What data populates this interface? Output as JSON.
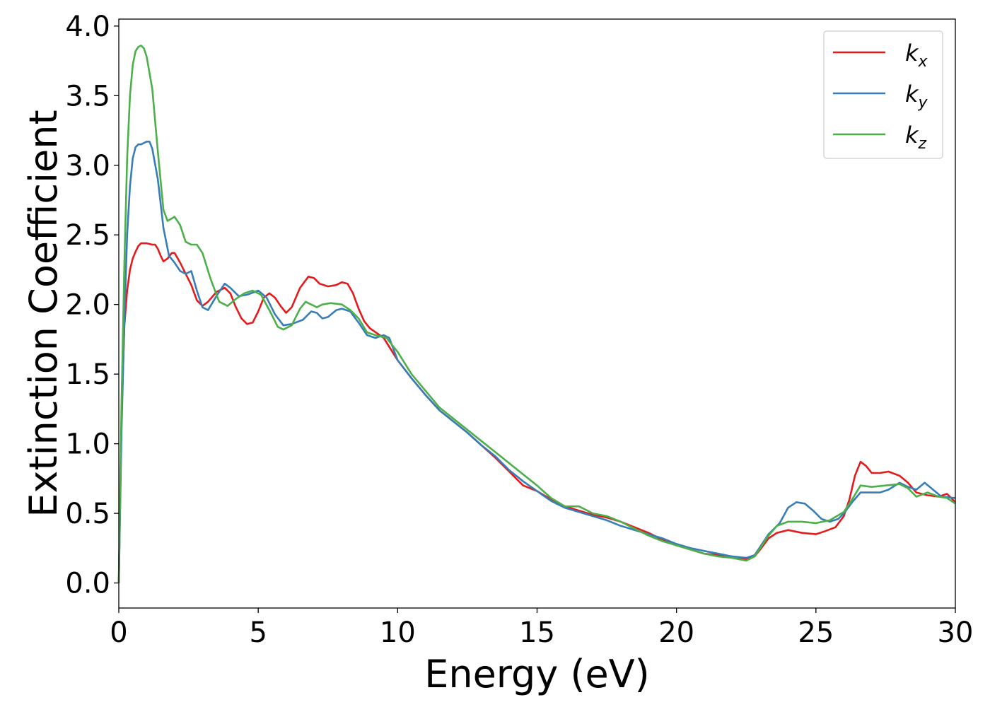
{
  "chart_data": {
    "type": "line",
    "title": "",
    "xlabel": "Energy (eV)",
    "ylabel": "Extinction Coefficient",
    "xlim": [
      0,
      30
    ],
    "ylim": [
      -0.18,
      4.05
    ],
    "xticks": [
      0,
      5,
      10,
      15,
      20,
      25,
      30
    ],
    "xtick_labels": [
      "0",
      "5",
      "10",
      "15",
      "20",
      "25",
      "30"
    ],
    "yticks": [
      0.0,
      0.5,
      1.0,
      1.5,
      2.0,
      2.5,
      3.0,
      3.5,
      4.0
    ],
    "ytick_labels": [
      "0.0",
      "0.5",
      "1.0",
      "1.5",
      "2.0",
      "2.5",
      "3.0",
      "3.5",
      "4.0"
    ],
    "grid": false,
    "legend_position": "top-right",
    "series": [
      {
        "name": "k_x",
        "label_main": "k",
        "label_sub": "x",
        "color": "#e41a1c",
        "points": [
          [
            0,
            0.0
          ],
          [
            0.1,
            1.2
          ],
          [
            0.2,
            1.85
          ],
          [
            0.3,
            2.1
          ],
          [
            0.4,
            2.25
          ],
          [
            0.5,
            2.33
          ],
          [
            0.6,
            2.38
          ],
          [
            0.7,
            2.42
          ],
          [
            0.8,
            2.44
          ],
          [
            1.0,
            2.44
          ],
          [
            1.2,
            2.43
          ],
          [
            1.3,
            2.43
          ],
          [
            1.4,
            2.4
          ],
          [
            1.5,
            2.35
          ],
          [
            1.6,
            2.31
          ],
          [
            1.75,
            2.33
          ],
          [
            1.9,
            2.37
          ],
          [
            2.0,
            2.37
          ],
          [
            2.2,
            2.3
          ],
          [
            2.4,
            2.22
          ],
          [
            2.6,
            2.14
          ],
          [
            2.8,
            2.03
          ],
          [
            3.0,
            1.99
          ],
          [
            3.2,
            2.02
          ],
          [
            3.5,
            2.09
          ],
          [
            3.8,
            2.12
          ],
          [
            4.0,
            2.08
          ],
          [
            4.2,
            1.98
          ],
          [
            4.4,
            1.9
          ],
          [
            4.6,
            1.86
          ],
          [
            4.8,
            1.87
          ],
          [
            5.0,
            1.95
          ],
          [
            5.2,
            2.05
          ],
          [
            5.4,
            2.08
          ],
          [
            5.6,
            2.05
          ],
          [
            5.8,
            1.99
          ],
          [
            6.0,
            1.94
          ],
          [
            6.2,
            1.98
          ],
          [
            6.5,
            2.12
          ],
          [
            6.8,
            2.2
          ],
          [
            7.0,
            2.19
          ],
          [
            7.2,
            2.15
          ],
          [
            7.5,
            2.13
          ],
          [
            7.8,
            2.14
          ],
          [
            8.0,
            2.16
          ],
          [
            8.2,
            2.15
          ],
          [
            8.4,
            2.08
          ],
          [
            8.6,
            1.97
          ],
          [
            8.8,
            1.88
          ],
          [
            9.0,
            1.83
          ],
          [
            9.5,
            1.76
          ],
          [
            10.0,
            1.6
          ],
          [
            10.5,
            1.47
          ],
          [
            11.0,
            1.35
          ],
          [
            11.5,
            1.24
          ],
          [
            12.0,
            1.16
          ],
          [
            12.5,
            1.08
          ],
          [
            13.0,
            0.99
          ],
          [
            13.5,
            0.9
          ],
          [
            14.0,
            0.8
          ],
          [
            14.5,
            0.7
          ],
          [
            15.0,
            0.66
          ],
          [
            15.5,
            0.6
          ],
          [
            16.0,
            0.55
          ],
          [
            16.5,
            0.52
          ],
          [
            17.0,
            0.49
          ],
          [
            17.5,
            0.47
          ],
          [
            18.0,
            0.44
          ],
          [
            18.5,
            0.4
          ],
          [
            19.0,
            0.36
          ],
          [
            19.5,
            0.31
          ],
          [
            20.0,
            0.27
          ],
          [
            20.5,
            0.24
          ],
          [
            21.0,
            0.21
          ],
          [
            21.5,
            0.2
          ],
          [
            22.0,
            0.19
          ],
          [
            22.5,
            0.17
          ],
          [
            22.8,
            0.19
          ],
          [
            23.0,
            0.24
          ],
          [
            23.3,
            0.32
          ],
          [
            23.6,
            0.36
          ],
          [
            24.0,
            0.38
          ],
          [
            24.5,
            0.36
          ],
          [
            25.0,
            0.35
          ],
          [
            25.3,
            0.37
          ],
          [
            25.7,
            0.4
          ],
          [
            26.0,
            0.48
          ],
          [
            26.2,
            0.6
          ],
          [
            26.4,
            0.77
          ],
          [
            26.6,
            0.87
          ],
          [
            26.8,
            0.84
          ],
          [
            27.0,
            0.79
          ],
          [
            27.3,
            0.79
          ],
          [
            27.6,
            0.8
          ],
          [
            28.0,
            0.77
          ],
          [
            28.3,
            0.72
          ],
          [
            28.6,
            0.65
          ],
          [
            29.0,
            0.63
          ],
          [
            29.4,
            0.62
          ],
          [
            29.7,
            0.64
          ],
          [
            30.0,
            0.58
          ]
        ]
      },
      {
        "name": "k_y",
        "label_main": "k",
        "label_sub": "y",
        "color": "#377eb8",
        "points": [
          [
            0,
            0.0
          ],
          [
            0.1,
            1.1
          ],
          [
            0.2,
            1.9
          ],
          [
            0.3,
            2.5
          ],
          [
            0.4,
            2.85
          ],
          [
            0.5,
            3.05
          ],
          [
            0.6,
            3.13
          ],
          [
            0.7,
            3.15
          ],
          [
            0.8,
            3.15
          ],
          [
            1.0,
            3.17
          ],
          [
            1.1,
            3.17
          ],
          [
            1.2,
            3.12
          ],
          [
            1.4,
            2.9
          ],
          [
            1.6,
            2.55
          ],
          [
            1.8,
            2.35
          ],
          [
            2.0,
            2.3
          ],
          [
            2.2,
            2.24
          ],
          [
            2.4,
            2.22
          ],
          [
            2.6,
            2.24
          ],
          [
            2.8,
            2.1
          ],
          [
            3.0,
            1.98
          ],
          [
            3.2,
            1.96
          ],
          [
            3.5,
            2.06
          ],
          [
            3.8,
            2.15
          ],
          [
            4.0,
            2.12
          ],
          [
            4.3,
            2.06
          ],
          [
            4.6,
            2.07
          ],
          [
            5.0,
            2.1
          ],
          [
            5.3,
            2.05
          ],
          [
            5.6,
            1.93
          ],
          [
            5.9,
            1.85
          ],
          [
            6.2,
            1.86
          ],
          [
            6.6,
            1.89
          ],
          [
            6.9,
            1.95
          ],
          [
            7.1,
            1.94
          ],
          [
            7.3,
            1.9
          ],
          [
            7.5,
            1.91
          ],
          [
            7.8,
            1.96
          ],
          [
            8.0,
            1.97
          ],
          [
            8.3,
            1.95
          ],
          [
            8.6,
            1.87
          ],
          [
            8.9,
            1.78
          ],
          [
            9.2,
            1.76
          ],
          [
            9.5,
            1.78
          ],
          [
            9.7,
            1.76
          ],
          [
            10.0,
            1.6
          ],
          [
            10.5,
            1.47
          ],
          [
            11.0,
            1.35
          ],
          [
            11.5,
            1.24
          ],
          [
            12.0,
            1.16
          ],
          [
            12.5,
            1.08
          ],
          [
            13.0,
            0.99
          ],
          [
            13.5,
            0.91
          ],
          [
            14.0,
            0.81
          ],
          [
            14.5,
            0.73
          ],
          [
            15.0,
            0.66
          ],
          [
            15.5,
            0.59
          ],
          [
            16.0,
            0.54
          ],
          [
            16.5,
            0.51
          ],
          [
            17.0,
            0.48
          ],
          [
            17.5,
            0.45
          ],
          [
            18.0,
            0.41
          ],
          [
            18.5,
            0.38
          ],
          [
            19.0,
            0.35
          ],
          [
            19.5,
            0.32
          ],
          [
            20.0,
            0.28
          ],
          [
            20.5,
            0.25
          ],
          [
            21.0,
            0.23
          ],
          [
            21.5,
            0.21
          ],
          [
            22.0,
            0.19
          ],
          [
            22.5,
            0.18
          ],
          [
            22.8,
            0.2
          ],
          [
            23.0,
            0.26
          ],
          [
            23.3,
            0.35
          ],
          [
            23.7,
            0.43
          ],
          [
            24.0,
            0.54
          ],
          [
            24.3,
            0.58
          ],
          [
            24.6,
            0.57
          ],
          [
            24.9,
            0.52
          ],
          [
            25.2,
            0.46
          ],
          [
            25.5,
            0.44
          ],
          [
            25.8,
            0.46
          ],
          [
            26.0,
            0.5
          ],
          [
            26.3,
            0.58
          ],
          [
            26.6,
            0.65
          ],
          [
            27.0,
            0.65
          ],
          [
            27.3,
            0.65
          ],
          [
            27.6,
            0.67
          ],
          [
            28.0,
            0.72
          ],
          [
            28.3,
            0.69
          ],
          [
            28.6,
            0.67
          ],
          [
            28.9,
            0.72
          ],
          [
            29.2,
            0.67
          ],
          [
            29.5,
            0.62
          ],
          [
            30.0,
            0.61
          ]
        ]
      },
      {
        "name": "k_z",
        "label_main": "k",
        "label_sub": "z",
        "color": "#4daf4a",
        "points": [
          [
            0,
            0.0
          ],
          [
            0.1,
            1.3
          ],
          [
            0.2,
            2.3
          ],
          [
            0.3,
            3.05
          ],
          [
            0.4,
            3.5
          ],
          [
            0.5,
            3.72
          ],
          [
            0.6,
            3.82
          ],
          [
            0.7,
            3.85
          ],
          [
            0.8,
            3.86
          ],
          [
            0.9,
            3.84
          ],
          [
            1.0,
            3.78
          ],
          [
            1.2,
            3.55
          ],
          [
            1.4,
            3.1
          ],
          [
            1.6,
            2.68
          ],
          [
            1.75,
            2.6
          ],
          [
            2.0,
            2.63
          ],
          [
            2.2,
            2.57
          ],
          [
            2.4,
            2.45
          ],
          [
            2.6,
            2.43
          ],
          [
            2.8,
            2.43
          ],
          [
            3.0,
            2.37
          ],
          [
            3.3,
            2.18
          ],
          [
            3.6,
            2.02
          ],
          [
            3.9,
            1.99
          ],
          [
            4.2,
            2.04
          ],
          [
            4.5,
            2.08
          ],
          [
            4.8,
            2.1
          ],
          [
            5.1,
            2.07
          ],
          [
            5.4,
            1.96
          ],
          [
            5.7,
            1.84
          ],
          [
            5.9,
            1.82
          ],
          [
            6.2,
            1.85
          ],
          [
            6.5,
            1.97
          ],
          [
            6.7,
            2.02
          ],
          [
            6.9,
            2.0
          ],
          [
            7.1,
            1.98
          ],
          [
            7.3,
            2.0
          ],
          [
            7.6,
            2.01
          ],
          [
            8.0,
            2.0
          ],
          [
            8.3,
            1.96
          ],
          [
            8.6,
            1.9
          ],
          [
            8.9,
            1.8
          ],
          [
            9.2,
            1.78
          ],
          [
            9.6,
            1.76
          ],
          [
            10.0,
            1.66
          ],
          [
            10.5,
            1.5
          ],
          [
            11.0,
            1.38
          ],
          [
            11.5,
            1.26
          ],
          [
            12.0,
            1.18
          ],
          [
            12.5,
            1.1
          ],
          [
            13.0,
            1.02
          ],
          [
            13.5,
            0.94
          ],
          [
            14.0,
            0.86
          ],
          [
            14.5,
            0.78
          ],
          [
            15.0,
            0.7
          ],
          [
            15.5,
            0.61
          ],
          [
            16.0,
            0.55
          ],
          [
            16.5,
            0.55
          ],
          [
            17.0,
            0.5
          ],
          [
            17.5,
            0.48
          ],
          [
            18.0,
            0.44
          ],
          [
            18.5,
            0.39
          ],
          [
            19.0,
            0.34
          ],
          [
            19.5,
            0.3
          ],
          [
            20.0,
            0.27
          ],
          [
            20.5,
            0.24
          ],
          [
            21.0,
            0.21
          ],
          [
            21.5,
            0.19
          ],
          [
            22.0,
            0.18
          ],
          [
            22.5,
            0.16
          ],
          [
            22.8,
            0.19
          ],
          [
            23.0,
            0.25
          ],
          [
            23.3,
            0.34
          ],
          [
            23.6,
            0.41
          ],
          [
            24.0,
            0.44
          ],
          [
            24.5,
            0.44
          ],
          [
            25.0,
            0.43
          ],
          [
            25.5,
            0.45
          ],
          [
            26.0,
            0.51
          ],
          [
            26.3,
            0.6
          ],
          [
            26.6,
            0.7
          ],
          [
            27.0,
            0.69
          ],
          [
            27.5,
            0.7
          ],
          [
            28.0,
            0.71
          ],
          [
            28.3,
            0.68
          ],
          [
            28.6,
            0.62
          ],
          [
            29.0,
            0.65
          ],
          [
            29.4,
            0.62
          ],
          [
            29.7,
            0.61
          ],
          [
            30.0,
            0.57
          ]
        ]
      }
    ]
  }
}
